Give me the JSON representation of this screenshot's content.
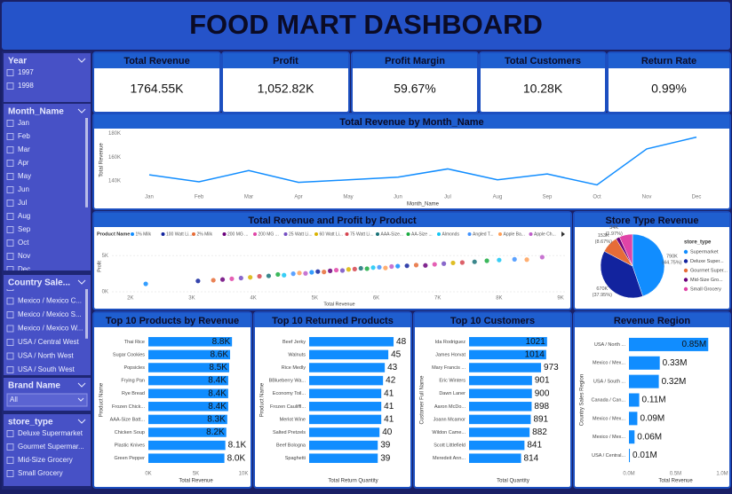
{
  "title": "FOOD MART DASHBOARD",
  "slicers": [
    {
      "title": "Year",
      "items": [
        "1997",
        "1998"
      ]
    },
    {
      "title": "Month_Name",
      "items": [
        "Jan",
        "Feb",
        "Mar",
        "Apr",
        "May",
        "Jun",
        "Jul",
        "Aug",
        "Sep",
        "Oct",
        "Nov",
        "Dec"
      ]
    },
    {
      "title": "Country Sale...",
      "items": [
        "Canada / Canada ...",
        "Mexico / Mexico C...",
        "Mexico / Mexico S...",
        "Mexico / Mexico W...",
        "USA / Central West",
        "USA / North West",
        "USA / South West"
      ]
    },
    {
      "title": "Brand Name",
      "style": "dropdown",
      "items": [
        "All"
      ]
    },
    {
      "title": "store_type",
      "items": [
        "Deluxe Supermarket",
        "Gourmet Supermar...",
        "Mid-Size Grocery",
        "Small Grocery"
      ]
    }
  ],
  "kpis": [
    {
      "label": "Total Revenue",
      "value": "1764.55K"
    },
    {
      "label": "Profit",
      "value": "1,052.82K"
    },
    {
      "label": "Profit Margin",
      "value": "59.67%"
    },
    {
      "label": "Total Customers",
      "value": "10.28K"
    },
    {
      "label": "Return Rate",
      "value": "0.99%"
    }
  ],
  "chart_data": [
    {
      "type": "line",
      "title": "Total Revenue by Month_Name",
      "x_label": "Month_Name",
      "y_label": "Total Revenue",
      "categories": [
        "Jan",
        "Feb",
        "Mar",
        "Apr",
        "May",
        "Jun",
        "Jul",
        "Aug",
        "Sep",
        "Oct",
        "Nov",
        "Dec"
      ],
      "values": [
        145000,
        139000,
        148600,
        138600,
        140700,
        143000,
        150000,
        140700,
        145700,
        136400,
        167000,
        177000
      ],
      "color": "#118dff",
      "ylim": [
        133000,
        182000
      ],
      "yticks": [
        {
          "value": 140000,
          "label": "140K"
        },
        {
          "value": 160000,
          "label": "160K"
        },
        {
          "value": 180000,
          "label": "180K"
        }
      ],
      "grid": false
    },
    {
      "type": "scatter",
      "title": "Total Revenue and Profit by Product",
      "x_label": "Total Revenue",
      "y_label": "Profit",
      "legend_title": "Product Name",
      "xlim": [
        1700,
        9100
      ],
      "ylim": [
        0,
        7000
      ],
      "xticks": [
        {
          "value": 2000,
          "label": "2K"
        },
        {
          "value": 3000,
          "label": "3K"
        },
        {
          "value": 4000,
          "label": "4K"
        },
        {
          "value": 5000,
          "label": "5K"
        },
        {
          "value": 6000,
          "label": "6K"
        },
        {
          "value": 7000,
          "label": "7K"
        },
        {
          "value": 8000,
          "label": "8K"
        },
        {
          "value": 9000,
          "label": "9K"
        }
      ],
      "yticks": [
        {
          "value": 0,
          "label": "0K"
        },
        {
          "value": 5000,
          "label": "5K"
        }
      ],
      "series": [
        {
          "name": "1% Milk",
          "color": "#118dff",
          "x": [
            2250,
            4950,
            6350
          ],
          "values": [
            1100,
            2700,
            3550
          ]
        },
        {
          "name": "100 Watt Li...",
          "color": "#12239e",
          "x": [
            3100,
            5050,
            6500
          ],
          "values": [
            1500,
            2800,
            3600
          ]
        },
        {
          "name": "2% Milk",
          "color": "#e66c37",
          "x": [
            3350,
            5150,
            6650
          ],
          "values": [
            1600,
            2750,
            3700
          ]
        },
        {
          "name": "200 MG ...",
          "color": "#6b007b",
          "x": [
            3500,
            5250,
            6800
          ],
          "values": [
            1700,
            2900,
            3650
          ]
        },
        {
          "name": "200 MG ...",
          "color": "#e044a7",
          "x": [
            3650,
            5350,
            6950
          ],
          "values": [
            1800,
            3000,
            3800
          ]
        },
        {
          "name": "25 Watt Li...",
          "color": "#744ec2",
          "x": [
            3800,
            5450,
            7100
          ],
          "values": [
            1900,
            2950,
            3900
          ]
        },
        {
          "name": "60 Watt Li...",
          "color": "#d9b300",
          "x": [
            3950,
            5550,
            7250
          ],
          "values": [
            2000,
            3100,
            4000
          ]
        },
        {
          "name": "75 Watt Li...",
          "color": "#d64550",
          "x": [
            4100,
            5650,
            7400
          ],
          "values": [
            2150,
            3150,
            4050
          ]
        },
        {
          "name": "AAA-Size...",
          "color": "#197278",
          "x": [
            4250,
            5750,
            7600
          ],
          "values": [
            2200,
            3250,
            4150
          ]
        },
        {
          "name": "AA-Size ...",
          "color": "#1aab40",
          "x": [
            4400,
            5850,
            7800
          ],
          "values": [
            2400,
            3200,
            4300
          ]
        },
        {
          "name": "Almonds",
          "color": "#15c6f4",
          "x": [
            4500,
            5950,
            8000
          ],
          "values": [
            2300,
            3350,
            4400
          ]
        },
        {
          "name": "Angled T...",
          "color": "#4092ff",
          "x": [
            4650,
            6050,
            8250
          ],
          "values": [
            2500,
            3400,
            4500
          ]
        },
        {
          "name": "Apple Ba...",
          "color": "#ffa058",
          "x": [
            4750,
            6150,
            8450
          ],
          "values": [
            2600,
            3300,
            4450
          ]
        },
        {
          "name": "Apple Ch...",
          "color": "#be5dc9",
          "x": [
            4850,
            6250,
            8700
          ],
          "values": [
            2550,
            3500,
            4800
          ]
        }
      ]
    },
    {
      "type": "pie",
      "title": "Store Type Revenue",
      "legend_title": "store_type",
      "categories": [
        "Supermarket",
        "Deluxe Super...",
        "Gourmet Super...",
        "Mid-Size Gro...",
        "Small Grocery"
      ],
      "values": [
        790000,
        670000,
        153000,
        34000,
        118000
      ],
      "value_labels": [
        "790K",
        "670K",
        "153K",
        "34K",
        null
      ],
      "pct_labels": [
        "(44.75%)",
        "(37.95%)",
        "(8.67%)",
        "(1.97%)",
        null
      ],
      "colors": [
        "#118dff",
        "#12239e",
        "#e66c37",
        "#6b007b",
        "#e044a7"
      ]
    },
    {
      "type": "barh",
      "title": "Top 10 Products by Revenue",
      "x_label": "Total Revenue",
      "y_label": "Product Name",
      "color": "#118dff",
      "categories": [
        "Thai Rice",
        "Sugar Cookies",
        "Popsicles",
        "Frying Pan",
        "Rye Bread",
        "Frozen Chick...",
        "AAA-Size Batt...",
        "Chicken Soup",
        "Plastic Knives",
        "Green Pepper"
      ],
      "values": [
        8800,
        8600,
        8500,
        8400,
        8400,
        8400,
        8300,
        8200,
        8100,
        8000
      ],
      "value_labels": [
        "8.8K",
        "8.6K",
        "8.5K",
        "8.4K",
        "8.4K",
        "8.4K",
        "8.3K",
        "8.2K",
        "8.1K",
        "8.0K"
      ],
      "xlim": [
        0,
        10000
      ],
      "xticks": [
        {
          "value": 0,
          "label": "0K"
        },
        {
          "value": 5000,
          "label": "5K"
        },
        {
          "value": 10000,
          "label": "10K"
        }
      ]
    },
    {
      "type": "barh",
      "title": "Top 10 Returned Products",
      "x_label": "Total Return Quantity",
      "y_label": "Product Name",
      "color": "#118dff",
      "categories": [
        "Beef Jerky",
        "Walnuts",
        "Rice Medly",
        "BBlueberry Wa...",
        "Economy Toil...",
        "Frozen Cauliffl...",
        "Merlot Wine",
        "Salted Pretzels",
        "Beef Bologna",
        "Spaghetti"
      ],
      "values": [
        48,
        45,
        43,
        42,
        41,
        41,
        41,
        40,
        39,
        39
      ],
      "xlim": [
        0,
        50
      ]
    },
    {
      "type": "barh",
      "title": "Top 10 Customers",
      "x_label": "Total Quantity",
      "y_label": "Customer Full Name",
      "color": "#118dff",
      "categories": [
        "Ida Rodriguez",
        "James Horvat",
        "Mary Francis ...",
        "Eric Winters",
        "Dawn Laner",
        "Aaron McDo...",
        "Joann Mcamor",
        "Wildon Came...",
        "Scott Littlefield",
        "Meredeit Ann..."
      ],
      "values": [
        1021,
        1014,
        973,
        901,
        900,
        898,
        891,
        882,
        841,
        814
      ],
      "xlim": [
        400,
        1100
      ]
    },
    {
      "type": "barh",
      "title": "Revenue Region",
      "x_label": "Total Revenue",
      "y_label": "Country Sales Region",
      "color": "#118dff",
      "categories": [
        "USA / North ...",
        "Mexico / Mex...",
        "USA / South ...",
        "Canada / Can...",
        "Mexico / Mex...",
        "Mexico / Mex...",
        "USA / Central..."
      ],
      "values": [
        850000,
        330000,
        320000,
        110000,
        90000,
        60000,
        10000
      ],
      "value_labels": [
        "0.85M",
        "0.33M",
        "0.32M",
        "0.11M",
        "0.09M",
        "0.06M",
        "0.01M"
      ],
      "xlim": [
        0,
        1000000
      ],
      "xticks": [
        {
          "value": 0,
          "label": "0.0M"
        },
        {
          "value": 500000,
          "label": "0.5M"
        },
        {
          "value": 1000000,
          "label": "1.0M"
        }
      ]
    }
  ]
}
